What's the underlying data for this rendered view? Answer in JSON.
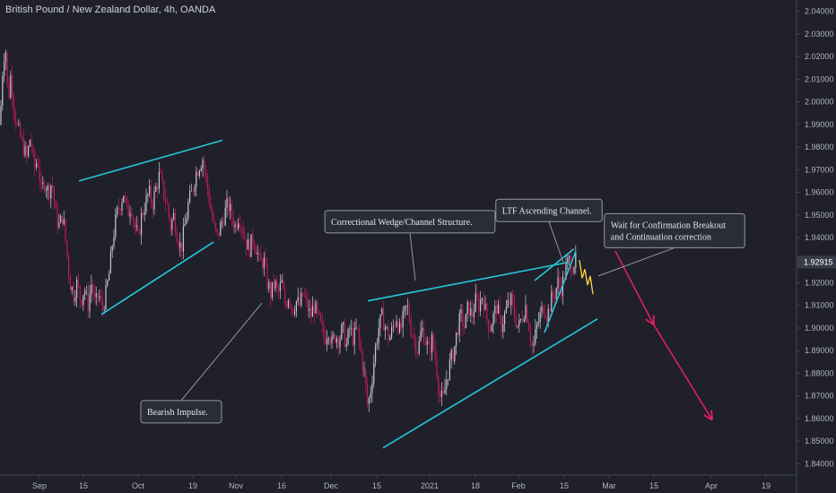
{
  "header": {
    "title": "British Pound / New Zealand Dollar, 4h, OANDA"
  },
  "chart_data": {
    "type": "candlestick",
    "ylim": [
      1.835,
      2.045
    ],
    "y_ticks": [
      "2.04000",
      "2.03000",
      "2.02000",
      "2.01000",
      "2.00000",
      "1.99000",
      "1.98000",
      "1.97000",
      "1.96000",
      "1.95000",
      "1.94000",
      "1.93000",
      "1.92000",
      "1.91000",
      "1.90000",
      "1.89000",
      "1.88000",
      "1.87000",
      "1.86000",
      "1.85000",
      "1.84000"
    ],
    "x_ticks": [
      "Sep",
      "15",
      "Oct",
      "19",
      "Nov",
      "16",
      "Dec",
      "15",
      "2021",
      "18",
      "Feb",
      "15",
      "Mar",
      "15",
      "Apr",
      "19"
    ],
    "last_price": "1.92915",
    "price_path": [
      [
        0,
        1.99
      ],
      [
        3,
        2.015
      ],
      [
        6,
        2.026
      ],
      [
        9,
        2.0
      ],
      [
        12,
        2.012
      ],
      [
        15,
        2.0
      ],
      [
        18,
        1.99
      ],
      [
        22,
        1.985
      ],
      [
        26,
        1.98
      ],
      [
        30,
        1.975
      ],
      [
        34,
        1.985
      ],
      [
        38,
        1.97
      ],
      [
        42,
        1.975
      ],
      [
        46,
        1.96
      ],
      [
        50,
        1.965
      ],
      [
        54,
        1.96
      ],
      [
        58,
        1.965
      ],
      [
        62,
        1.95
      ],
      [
        66,
        1.945
      ],
      [
        70,
        1.95
      ],
      [
        74,
        1.935
      ],
      [
        78,
        1.92
      ],
      [
        82,
        1.915
      ],
      [
        86,
        1.92
      ],
      [
        90,
        1.912
      ],
      [
        94,
        1.918
      ],
      [
        98,
        1.91
      ],
      [
        102,
        1.92
      ],
      [
        106,
        1.91
      ],
      [
        110,
        1.915
      ],
      [
        114,
        1.908
      ],
      [
        118,
        1.915
      ],
      [
        122,
        1.925
      ],
      [
        126,
        1.94
      ],
      [
        130,
        1.95
      ],
      [
        134,
        1.955
      ],
      [
        138,
        1.96
      ],
      [
        142,
        1.95
      ],
      [
        146,
        1.955
      ],
      [
        150,
        1.945
      ],
      [
        154,
        1.94
      ],
      [
        158,
        1.95
      ],
      [
        162,
        1.955
      ],
      [
        166,
        1.96
      ],
      [
        170,
        1.955
      ],
      [
        174,
        1.962
      ],
      [
        178,
        1.968
      ],
      [
        182,
        1.96
      ],
      [
        186,
        1.955
      ],
      [
        190,
        1.945
      ],
      [
        194,
        1.95
      ],
      [
        198,
        1.94
      ],
      [
        202,
        1.935
      ],
      [
        206,
        1.945
      ],
      [
        210,
        1.955
      ],
      [
        214,
        1.96
      ],
      [
        218,
        1.968
      ],
      [
        222,
        1.972
      ],
      [
        226,
        1.975
      ],
      [
        230,
        1.965
      ],
      [
        234,
        1.955
      ],
      [
        238,
        1.945
      ],
      [
        242,
        1.94
      ],
      [
        246,
        1.945
      ],
      [
        250,
        1.95
      ],
      [
        254,
        1.955
      ],
      [
        258,
        1.95
      ],
      [
        262,
        1.945
      ],
      [
        266,
        1.95
      ],
      [
        270,
        1.945
      ],
      [
        274,
        1.938
      ],
      [
        278,
        1.935
      ],
      [
        282,
        1.94
      ],
      [
        286,
        1.935
      ],
      [
        290,
        1.928
      ],
      [
        294,
        1.93
      ],
      [
        298,
        1.92
      ],
      [
        302,
        1.915
      ],
      [
        306,
        1.92
      ],
      [
        310,
        1.915
      ],
      [
        314,
        1.92
      ],
      [
        318,
        1.91
      ],
      [
        322,
        1.915
      ],
      [
        326,
        1.908
      ],
      [
        330,
        1.912
      ],
      [
        334,
        1.91
      ],
      [
        338,
        1.915
      ],
      [
        342,
        1.91
      ],
      [
        346,
        1.905
      ],
      [
        350,
        1.91
      ],
      [
        354,
        1.905
      ],
      [
        358,
        1.9
      ],
      [
        362,
        1.895
      ],
      [
        366,
        1.9
      ],
      [
        370,
        1.893
      ],
      [
        374,
        1.897
      ],
      [
        378,
        1.895
      ],
      [
        382,
        1.9
      ],
      [
        386,
        1.892
      ],
      [
        390,
        1.9
      ],
      [
        394,
        1.895
      ],
      [
        398,
        1.9
      ],
      [
        402,
        1.89
      ],
      [
        406,
        1.88
      ],
      [
        410,
        1.865
      ],
      [
        414,
        1.875
      ],
      [
        418,
        1.89
      ],
      [
        422,
        1.9
      ],
      [
        426,
        1.905
      ],
      [
        430,
        1.9
      ],
      [
        434,
        1.895
      ],
      [
        438,
        1.9
      ],
      [
        442,
        1.905
      ],
      [
        446,
        1.898
      ],
      [
        450,
        1.905
      ],
      [
        454,
        1.91
      ],
      [
        458,
        1.9
      ],
      [
        462,
        1.895
      ],
      [
        466,
        1.89
      ],
      [
        470,
        1.9
      ],
      [
        474,
        1.895
      ],
      [
        478,
        1.89
      ],
      [
        482,
        1.895
      ],
      [
        486,
        1.885
      ],
      [
        490,
        1.87
      ],
      [
        494,
        1.868
      ],
      [
        498,
        1.878
      ],
      [
        502,
        1.885
      ],
      [
        506,
        1.89
      ],
      [
        510,
        1.9
      ],
      [
        514,
        1.905
      ],
      [
        518,
        1.9
      ],
      [
        522,
        1.91
      ],
      [
        526,
        1.905
      ],
      [
        530,
        1.912
      ],
      [
        534,
        1.91
      ],
      [
        538,
        1.915
      ],
      [
        542,
        1.905
      ],
      [
        546,
        1.9
      ],
      [
        550,
        1.905
      ],
      [
        554,
        1.91
      ],
      [
        558,
        1.9
      ],
      [
        562,
        1.905
      ],
      [
        566,
        1.91
      ],
      [
        570,
        1.912
      ],
      [
        574,
        1.905
      ],
      [
        578,
        1.9
      ],
      [
        582,
        1.905
      ],
      [
        586,
        1.91
      ],
      [
        590,
        1.9
      ],
      [
        594,
        1.89
      ],
      [
        598,
        1.9
      ],
      [
        602,
        1.905
      ],
      [
        606,
        1.91
      ],
      [
        610,
        1.905
      ],
      [
        614,
        1.912
      ],
      [
        618,
        1.915
      ],
      [
        622,
        1.92
      ],
      [
        626,
        1.918
      ],
      [
        630,
        1.925
      ],
      [
        634,
        1.93
      ],
      [
        638,
        1.928
      ],
      [
        642,
        1.93
      ]
    ],
    "projection_path": [
      [
        646,
        1.93
      ],
      [
        649,
        1.922
      ],
      [
        652,
        1.926
      ],
      [
        655,
        1.919
      ],
      [
        658,
        1.923
      ],
      [
        661,
        1.915
      ]
    ],
    "annotations": [
      {
        "text_lines": [
          "Correctional Wedge/Channel Structure."
        ],
        "x": 457,
        "y": 1.947,
        "pointer": [
          463,
          1.921
        ]
      },
      {
        "text_lines": [
          "LTF Ascending Channel."
        ],
        "x": 612,
        "y": 1.952,
        "pointer": [
          628,
          1.929
        ]
      },
      {
        "text_lines": [
          "Wait for Confirmation Breakout",
          "and Continuation correction"
        ],
        "x": 752,
        "y": 1.943,
        "pointer": [
          667,
          1.923
        ]
      },
      {
        "text_lines": [
          "Bearish Impulse."
        ],
        "x": 202,
        "y": 1.863,
        "pointer": [
          292,
          1.911
        ]
      }
    ],
    "trendlines": [
      {
        "points": [
          [
            88,
            1.965
          ],
          [
            248,
            1.983
          ]
        ],
        "color": "#26c6da"
      },
      {
        "points": [
          [
            113,
            1.906
          ],
          [
            238,
            1.938
          ]
        ],
        "color": "#26c6da"
      },
      {
        "points": [
          [
            410,
            1.912
          ],
          [
            633,
            1.929
          ]
        ],
        "color": "#26c6da"
      },
      {
        "points": [
          [
            427,
            1.847
          ],
          [
            666,
            1.904
          ]
        ],
        "color": "#26c6da"
      },
      {
        "points": [
          [
            596,
            1.921
          ],
          [
            640,
            1.935
          ]
        ],
        "color": "#26c6da"
      },
      {
        "points": [
          [
            607,
            1.898
          ],
          [
            642,
            1.934
          ]
        ],
        "color": "#26c6da"
      }
    ],
    "arrows": [
      {
        "points": [
          [
            686,
            1.934
          ],
          [
            728,
            1.902
          ],
          [
            793,
            1.86
          ]
        ],
        "color": "#e91e63"
      }
    ]
  },
  "colors": {
    "background": "#1f2029",
    "up_candle": "#c7c7d1",
    "down_candle": "#c2185b",
    "trendline": "#26c6da",
    "projection": "#ffd740",
    "arrow": "#e91e63",
    "price_tag": "#3a3c49",
    "axis_text": "#b2b5be"
  }
}
